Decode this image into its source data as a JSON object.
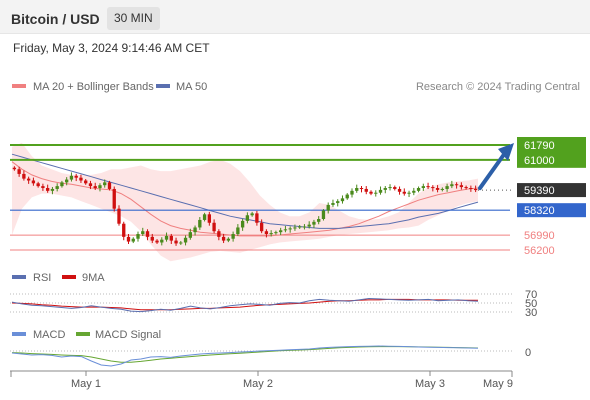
{
  "header": {
    "title": "Bitcoin / USD",
    "interval": "30 MIN"
  },
  "datetime": "Friday, May 3, 2024 9:14:46 AM CET",
  "legend": {
    "ma20": "MA 20 + Bollinger Bands",
    "ma50": "MA 50",
    "rsi": "RSI",
    "ma9": "9MA",
    "macd": "MACD",
    "macd_signal": "MACD Signal"
  },
  "credit": "Research © 2024 Trading Central",
  "colors": {
    "resistance": "#52a11e",
    "pivot": "#3366cc",
    "support": "#f08080",
    "last": "#333333",
    "bullish": "#4a8a1c",
    "bearish": "#d01010",
    "bollinger": "#fcdede",
    "ma20": "#f08080",
    "ma50": "#5a6fb0",
    "rsi": "#5a6fb0",
    "rsi_ma": "#d01010",
    "macd": "#6a8fd8",
    "macd_signal": "#66a632",
    "arrow": "#2c5fa8"
  },
  "chart_data": {
    "type": "candlestick",
    "x_ticks": [
      "May 1",
      "May 2",
      "May 3",
      "May 9"
    ],
    "levels": [
      {
        "label": "61790",
        "value": 61790,
        "kind": "resistance"
      },
      {
        "label": "61000",
        "value": 61000,
        "kind": "resistance"
      },
      {
        "label": "59390",
        "value": 59390,
        "kind": "last"
      },
      {
        "label": "58320",
        "value": 58320,
        "kind": "pivot"
      },
      {
        "label": "56990",
        "value": 56990,
        "kind": "support"
      },
      {
        "label": "56200",
        "value": 56200,
        "kind": "support"
      }
    ],
    "price_ylim": [
      55600,
      63000
    ],
    "close_path": [
      60500,
      60250,
      60000,
      59900,
      59750,
      59600,
      59500,
      59350,
      59450,
      59600,
      59800,
      59950,
      60150,
      60050,
      59900,
      59750,
      59600,
      59500,
      59650,
      59800,
      59450,
      58400,
      57600,
      56900,
      56650,
      56800,
      57050,
      57200,
      56900,
      56700,
      56600,
      56750,
      56950,
      56700,
      56550,
      56600,
      56850,
      57150,
      57400,
      57800,
      58100,
      57650,
      57200,
      56900,
      56700,
      56800,
      57050,
      57400,
      57750,
      58050,
      58150,
      57650,
      57200,
      57050,
      57100,
      57150,
      57250,
      57300,
      57350,
      57400,
      57450,
      57450,
      57550,
      57700,
      57850,
      58300,
      58600,
      58700,
      58800,
      58950,
      59150,
      59350,
      59500,
      59450,
      59300,
      59200,
      59250,
      59400,
      59500,
      59550,
      59450,
      59300,
      59200,
      59250,
      59350,
      59500,
      59600,
      59550,
      59500,
      59400,
      59450,
      59600,
      59700,
      59650,
      59550,
      59500,
      59450,
      59390
    ],
    "bollinger": {
      "upper": [
        61700,
        61900,
        61200,
        60700,
        60500,
        60300,
        60200,
        60200,
        60200,
        60300,
        60500,
        60500,
        60600,
        60700,
        60500,
        60400,
        60400,
        60500,
        60600,
        60700,
        60900,
        61000,
        60800,
        60400,
        59800,
        59100,
        58600,
        58200,
        58000,
        58000,
        58200,
        58700,
        58600,
        58300,
        58000,
        57850,
        57800,
        57850,
        58000,
        58200,
        58700,
        59200,
        59550,
        59700,
        59800,
        59850,
        59900,
        60000
      ],
      "lower": [
        57000,
        58400,
        59000,
        59200,
        59200,
        59100,
        59000,
        58800,
        58600,
        58400,
        58200,
        58000,
        57700,
        57200,
        56500,
        55900,
        55600,
        55700,
        55800,
        55950,
        56100,
        56150,
        56100,
        56050,
        56200,
        56350,
        56500,
        56600,
        56650,
        56700,
        56750,
        56800,
        56900,
        57000,
        57050,
        57100,
        57150,
        57200,
        57250,
        57350,
        57400,
        57500,
        57800,
        58050,
        58300,
        58550,
        58700,
        58800
      ]
    },
    "ma20": [
      60900,
      60500,
      60200,
      60000,
      59850,
      59750,
      59700,
      59600,
      59500,
      59450,
      59400,
      59200,
      58900,
      58500,
      58100,
      57750,
      57500,
      57350,
      57250,
      57150,
      57100,
      57050,
      57000,
      56950,
      56950,
      56950,
      56950,
      57000,
      57050,
      57100,
      57150,
      57200,
      57250,
      57350,
      57450,
      57600,
      57800,
      58000,
      58250,
      58450,
      58650,
      58850,
      59000,
      59150,
      59250,
      59350,
      59450,
      59500
    ],
    "ma50": [
      61300,
      61150,
      61000,
      60850,
      60700,
      60550,
      60400,
      60250,
      60100,
      59950,
      59800,
      59650,
      59500,
      59350,
      59200,
      59050,
      58900,
      58750,
      58600,
      58450,
      58300,
      58150,
      58000,
      57900,
      57800,
      57700,
      57600,
      57550,
      57500,
      57450,
      57400,
      57350,
      57350,
      57350,
      57400,
      57450,
      57500,
      57550,
      57600,
      57700,
      57800,
      57950,
      58050,
      58150,
      58300,
      58450,
      58600,
      58750
    ],
    "rsi_ticks": [
      70,
      50,
      30
    ],
    "rsi": [
      52,
      48,
      45,
      44,
      42,
      40,
      38,
      40,
      44,
      41,
      38,
      36,
      32,
      31,
      33,
      36,
      34,
      38,
      43,
      39,
      37,
      40,
      44,
      46,
      48,
      47,
      45,
      49,
      51,
      50,
      55,
      58,
      56,
      55,
      54,
      57,
      60,
      59,
      58,
      57,
      56,
      57,
      58,
      55,
      56,
      57,
      55,
      54
    ],
    "rsi_ma": [
      50,
      49,
      48,
      46,
      45,
      43,
      42,
      41,
      41,
      41,
      40,
      39,
      37,
      35,
      35,
      35,
      35,
      36,
      37,
      38,
      38,
      39,
      40,
      41,
      43,
      45,
      46,
      47,
      48,
      49,
      50,
      52,
      54,
      55,
      55,
      56,
      57,
      57,
      58,
      58,
      58,
      57,
      57,
      57,
      57,
      56,
      56,
      56
    ],
    "macd_ticks": [
      0
    ],
    "macd": [
      -100,
      -150,
      -200,
      -180,
      -220,
      -300,
      -250,
      -280,
      -500,
      -700,
      -750,
      -650,
      -450,
      -400,
      -300,
      -280,
      -320,
      -250,
      -200,
      -150,
      -120,
      -100,
      -80,
      -50,
      -30,
      0,
      20,
      40,
      60,
      80,
      100,
      150,
      180,
      200,
      220,
      230,
      240,
      250,
      240,
      230,
      220,
      200,
      190,
      180,
      170,
      160,
      150,
      140
    ],
    "macd_signal": [
      -80,
      -100,
      -130,
      -150,
      -170,
      -200,
      -220,
      -230,
      -300,
      -400,
      -500,
      -560,
      -560,
      -520,
      -460,
      -400,
      -360,
      -320,
      -280,
      -240,
      -200,
      -170,
      -140,
      -110,
      -80,
      -50,
      -20,
      10,
      30,
      50,
      70,
      100,
      130,
      160,
      180,
      200,
      210,
      220,
      220,
      220,
      210,
      205,
      200,
      190,
      180,
      170,
      160,
      150
    ]
  }
}
